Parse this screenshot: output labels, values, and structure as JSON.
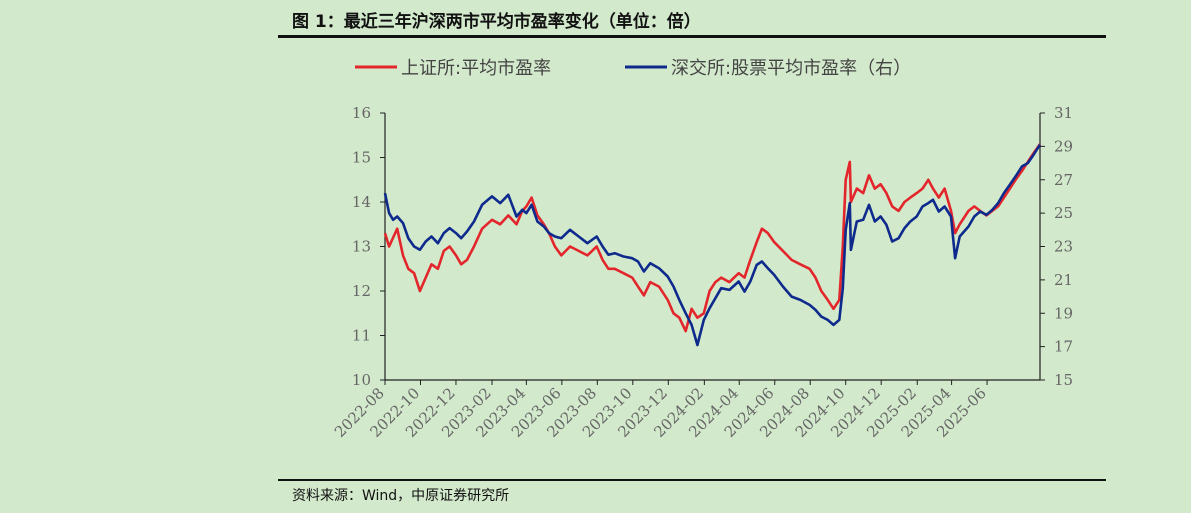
{
  "figure": {
    "title": "图 1：最近三年沪深两市平均市盈率变化（单位：倍）",
    "source": "资料来源：Wind，中原证券研究所"
  },
  "colors": {
    "background": "#d3e9cc",
    "series_sh": "#e3262b",
    "series_sz": "#0e2a8c",
    "axis": "#222222"
  },
  "chart_data": {
    "type": "line",
    "x_ticks": [
      "2022-08",
      "2022-10",
      "2022-12",
      "2023-02",
      "2023-04",
      "2023-06",
      "2023-08",
      "2023-10",
      "2023-12",
      "2024-02",
      "2024-04",
      "2024-06",
      "2024-08",
      "2024-10",
      "2024-12",
      "2025-02",
      "2025-04",
      "2025-06"
    ],
    "x_range": [
      "2022-08-01",
      "2025-08-31"
    ],
    "y_left": {
      "range": [
        10,
        16
      ],
      "ticks": [
        "10",
        "11",
        "12",
        "13",
        "14",
        "15",
        "16"
      ]
    },
    "y_right": {
      "range": [
        15,
        31
      ],
      "ticks": [
        "15",
        "17",
        "19",
        "21",
        "23",
        "25",
        "27",
        "29",
        "31"
      ]
    },
    "legend_position": "top",
    "grid": false,
    "series": [
      {
        "name": "上证所:平均市盈率",
        "axis": "left",
        "color": "#e3262b",
        "points": [
          [
            "2022-08-01",
            13.3
          ],
          [
            "2022-08-08",
            13.0
          ],
          [
            "2022-08-15",
            13.2
          ],
          [
            "2022-08-22",
            13.4
          ],
          [
            "2022-09-01",
            12.8
          ],
          [
            "2022-09-10",
            12.5
          ],
          [
            "2022-09-20",
            12.4
          ],
          [
            "2022-09-30",
            12.0
          ],
          [
            "2022-10-10",
            12.3
          ],
          [
            "2022-10-20",
            12.6
          ],
          [
            "2022-10-31",
            12.5
          ],
          [
            "2022-11-10",
            12.9
          ],
          [
            "2022-11-20",
            13.0
          ],
          [
            "2022-12-01",
            12.8
          ],
          [
            "2022-12-10",
            12.6
          ],
          [
            "2022-12-20",
            12.7
          ],
          [
            "2023-01-01",
            13.0
          ],
          [
            "2023-01-15",
            13.4
          ],
          [
            "2023-02-01",
            13.6
          ],
          [
            "2023-02-15",
            13.5
          ],
          [
            "2023-03-01",
            13.7
          ],
          [
            "2023-03-15",
            13.5
          ],
          [
            "2023-03-25",
            13.8
          ],
          [
            "2023-04-01",
            13.9
          ],
          [
            "2023-04-10",
            14.1
          ],
          [
            "2023-04-20",
            13.7
          ],
          [
            "2023-05-01",
            13.5
          ],
          [
            "2023-05-10",
            13.3
          ],
          [
            "2023-05-20",
            13.0
          ],
          [
            "2023-05-31",
            12.8
          ],
          [
            "2023-06-15",
            13.0
          ],
          [
            "2023-06-30",
            12.9
          ],
          [
            "2023-07-15",
            12.8
          ],
          [
            "2023-07-31",
            13.0
          ],
          [
            "2023-08-10",
            12.7
          ],
          [
            "2023-08-20",
            12.5
          ],
          [
            "2023-08-31",
            12.5
          ],
          [
            "2023-09-15",
            12.4
          ],
          [
            "2023-09-30",
            12.3
          ],
          [
            "2023-10-10",
            12.1
          ],
          [
            "2023-10-20",
            11.9
          ],
          [
            "2023-10-31",
            12.2
          ],
          [
            "2023-11-15",
            12.1
          ],
          [
            "2023-11-30",
            11.8
          ],
          [
            "2023-12-10",
            11.5
          ],
          [
            "2023-12-20",
            11.4
          ],
          [
            "2023-12-31",
            11.1
          ],
          [
            "2024-01-10",
            11.6
          ],
          [
            "2024-01-20",
            11.4
          ],
          [
            "2024-01-31",
            11.5
          ],
          [
            "2024-02-10",
            12.0
          ],
          [
            "2024-02-20",
            12.2
          ],
          [
            "2024-03-01",
            12.3
          ],
          [
            "2024-03-15",
            12.2
          ],
          [
            "2024-03-31",
            12.4
          ],
          [
            "2024-04-10",
            12.3
          ],
          [
            "2024-04-20",
            12.7
          ],
          [
            "2024-05-01",
            13.1
          ],
          [
            "2024-05-10",
            13.4
          ],
          [
            "2024-05-20",
            13.3
          ],
          [
            "2024-05-31",
            13.1
          ],
          [
            "2024-06-15",
            12.9
          ],
          [
            "2024-06-30",
            12.7
          ],
          [
            "2024-07-15",
            12.6
          ],
          [
            "2024-07-31",
            12.5
          ],
          [
            "2024-08-10",
            12.3
          ],
          [
            "2024-08-20",
            12.0
          ],
          [
            "2024-08-31",
            11.8
          ],
          [
            "2024-09-10",
            11.6
          ],
          [
            "2024-09-20",
            11.8
          ],
          [
            "2024-09-26",
            13.0
          ],
          [
            "2024-10-01",
            14.5
          ],
          [
            "2024-10-08",
            14.9
          ],
          [
            "2024-10-10",
            14.0
          ],
          [
            "2024-10-20",
            14.3
          ],
          [
            "2024-10-31",
            14.2
          ],
          [
            "2024-11-10",
            14.6
          ],
          [
            "2024-11-20",
            14.3
          ],
          [
            "2024-11-30",
            14.4
          ],
          [
            "2024-12-10",
            14.2
          ],
          [
            "2024-12-20",
            13.9
          ],
          [
            "2024-12-31",
            13.8
          ],
          [
            "2025-01-10",
            14.0
          ],
          [
            "2025-01-20",
            14.1
          ],
          [
            "2025-01-31",
            14.2
          ],
          [
            "2025-02-10",
            14.3
          ],
          [
            "2025-02-20",
            14.5
          ],
          [
            "2025-02-28",
            14.3
          ],
          [
            "2025-03-10",
            14.1
          ],
          [
            "2025-03-20",
            14.3
          ],
          [
            "2025-03-31",
            13.8
          ],
          [
            "2025-04-07",
            13.3
          ],
          [
            "2025-04-15",
            13.5
          ],
          [
            "2025-04-30",
            13.8
          ],
          [
            "2025-05-10",
            13.9
          ],
          [
            "2025-05-20",
            13.8
          ],
          [
            "2025-05-31",
            13.7
          ],
          [
            "2025-06-10",
            13.8
          ],
          [
            "2025-06-20",
            13.9
          ],
          [
            "2025-06-30",
            14.1
          ],
          [
            "2025-07-10",
            14.3
          ],
          [
            "2025-07-20",
            14.5
          ],
          [
            "2025-07-31",
            14.7
          ],
          [
            "2025-08-10",
            14.9
          ],
          [
            "2025-08-20",
            15.1
          ],
          [
            "2025-08-31",
            15.3
          ]
        ]
      },
      {
        "name": "深交所:股票平均市盈率（右）",
        "axis": "right",
        "color": "#0e2a8c",
        "points": [
          [
            "2022-08-01",
            26.2
          ],
          [
            "2022-08-08",
            25.0
          ],
          [
            "2022-08-15",
            24.6
          ],
          [
            "2022-08-22",
            24.8
          ],
          [
            "2022-09-01",
            24.4
          ],
          [
            "2022-09-10",
            23.5
          ],
          [
            "2022-09-20",
            23.0
          ],
          [
            "2022-09-30",
            22.8
          ],
          [
            "2022-10-10",
            23.3
          ],
          [
            "2022-10-20",
            23.6
          ],
          [
            "2022-10-31",
            23.2
          ],
          [
            "2022-11-10",
            23.8
          ],
          [
            "2022-11-20",
            24.1
          ],
          [
            "2022-12-01",
            23.8
          ],
          [
            "2022-12-10",
            23.5
          ],
          [
            "2022-12-20",
            23.9
          ],
          [
            "2023-01-01",
            24.5
          ],
          [
            "2023-01-15",
            25.5
          ],
          [
            "2023-02-01",
            26.0
          ],
          [
            "2023-02-15",
            25.6
          ],
          [
            "2023-03-01",
            26.1
          ],
          [
            "2023-03-15",
            24.8
          ],
          [
            "2023-03-25",
            25.2
          ],
          [
            "2023-04-01",
            25.0
          ],
          [
            "2023-04-10",
            25.5
          ],
          [
            "2023-04-20",
            24.5
          ],
          [
            "2023-05-01",
            24.2
          ],
          [
            "2023-05-10",
            23.8
          ],
          [
            "2023-05-20",
            23.6
          ],
          [
            "2023-05-31",
            23.5
          ],
          [
            "2023-06-15",
            24.0
          ],
          [
            "2023-06-30",
            23.6
          ],
          [
            "2023-07-15",
            23.2
          ],
          [
            "2023-07-31",
            23.6
          ],
          [
            "2023-08-10",
            23.0
          ],
          [
            "2023-08-20",
            22.5
          ],
          [
            "2023-08-31",
            22.6
          ],
          [
            "2023-09-15",
            22.4
          ],
          [
            "2023-09-30",
            22.3
          ],
          [
            "2023-10-10",
            22.1
          ],
          [
            "2023-10-20",
            21.5
          ],
          [
            "2023-10-31",
            22.0
          ],
          [
            "2023-11-15",
            21.7
          ],
          [
            "2023-11-30",
            21.2
          ],
          [
            "2023-12-10",
            20.6
          ],
          [
            "2023-12-20",
            19.8
          ],
          [
            "2023-12-31",
            19.0
          ],
          [
            "2024-01-10",
            18.3
          ],
          [
            "2024-01-20",
            17.1
          ],
          [
            "2024-01-31",
            18.6
          ],
          [
            "2024-02-10",
            19.3
          ],
          [
            "2024-02-20",
            19.9
          ],
          [
            "2024-03-01",
            20.5
          ],
          [
            "2024-03-15",
            20.4
          ],
          [
            "2024-03-31",
            20.9
          ],
          [
            "2024-04-10",
            20.3
          ],
          [
            "2024-04-20",
            20.9
          ],
          [
            "2024-05-01",
            21.9
          ],
          [
            "2024-05-10",
            22.1
          ],
          [
            "2024-05-20",
            21.7
          ],
          [
            "2024-05-31",
            21.3
          ],
          [
            "2024-06-15",
            20.6
          ],
          [
            "2024-06-30",
            20.0
          ],
          [
            "2024-07-15",
            19.8
          ],
          [
            "2024-07-31",
            19.5
          ],
          [
            "2024-08-10",
            19.2
          ],
          [
            "2024-08-20",
            18.8
          ],
          [
            "2024-08-31",
            18.6
          ],
          [
            "2024-09-10",
            18.3
          ],
          [
            "2024-09-20",
            18.6
          ],
          [
            "2024-09-26",
            20.5
          ],
          [
            "2024-10-01",
            24.0
          ],
          [
            "2024-10-08",
            25.6
          ],
          [
            "2024-10-10",
            22.8
          ],
          [
            "2024-10-20",
            24.5
          ],
          [
            "2024-10-31",
            24.6
          ],
          [
            "2024-11-10",
            25.5
          ],
          [
            "2024-11-20",
            24.5
          ],
          [
            "2024-11-30",
            24.8
          ],
          [
            "2024-12-10",
            24.3
          ],
          [
            "2024-12-20",
            23.3
          ],
          [
            "2024-12-31",
            23.5
          ],
          [
            "2025-01-10",
            24.1
          ],
          [
            "2025-01-20",
            24.5
          ],
          [
            "2025-01-31",
            24.8
          ],
          [
            "2025-02-10",
            25.4
          ],
          [
            "2025-02-20",
            25.6
          ],
          [
            "2025-02-28",
            25.8
          ],
          [
            "2025-03-10",
            25.1
          ],
          [
            "2025-03-20",
            25.4
          ],
          [
            "2025-03-31",
            24.8
          ],
          [
            "2025-04-07",
            22.3
          ],
          [
            "2025-04-15",
            23.6
          ],
          [
            "2025-04-30",
            24.2
          ],
          [
            "2025-05-10",
            24.8
          ],
          [
            "2025-05-20",
            25.1
          ],
          [
            "2025-05-31",
            24.9
          ],
          [
            "2025-06-10",
            25.2
          ],
          [
            "2025-06-20",
            25.6
          ],
          [
            "2025-06-30",
            26.2
          ],
          [
            "2025-07-10",
            26.7
          ],
          [
            "2025-07-20",
            27.2
          ],
          [
            "2025-07-31",
            27.8
          ],
          [
            "2025-08-10",
            28.0
          ],
          [
            "2025-08-20",
            28.5
          ],
          [
            "2025-08-31",
            29.1
          ]
        ]
      }
    ]
  }
}
